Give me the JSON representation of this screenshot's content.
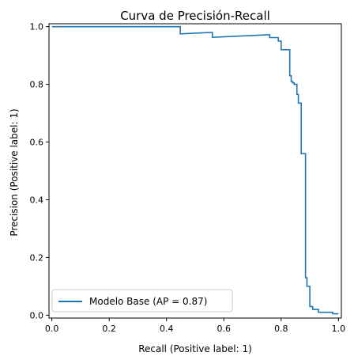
{
  "chart_data": {
    "type": "line",
    "title": "Curva de Precisión-Recall",
    "xlabel": "Recall (Positive label: 1)",
    "ylabel": "Precision (Positive label: 1)",
    "xlim": [
      -0.01,
      1.01
    ],
    "ylim": [
      -0.01,
      1.01
    ],
    "xticks": [
      "0.0",
      "0.2",
      "0.4",
      "0.6",
      "0.8",
      "1.0"
    ],
    "yticks": [
      "0.0",
      "0.2",
      "0.4",
      "0.6",
      "0.8",
      "1.0"
    ],
    "grid": false,
    "legend_position": "lower left",
    "series": [
      {
        "name": "Modelo Base (AP = 0.87)",
        "color": "#1f77b4",
        "drawstyle": "steps-post",
        "x": [
          0.0,
          0.448,
          0.448,
          0.56,
          0.56,
          0.76,
          0.76,
          0.79,
          0.79,
          0.8,
          0.8,
          0.81,
          0.81,
          0.83,
          0.83,
          0.835,
          0.835,
          0.84,
          0.84,
          0.845,
          0.845,
          0.855,
          0.855,
          0.86,
          0.86,
          0.87,
          0.87,
          0.88,
          0.88,
          0.885,
          0.885,
          0.89,
          0.89,
          0.9,
          0.9,
          0.91,
          0.91,
          0.93,
          0.93,
          0.98,
          0.98,
          1.0
        ],
        "y": [
          1.0,
          1.0,
          0.975,
          0.98,
          0.963,
          0.972,
          0.962,
          0.962,
          0.95,
          0.95,
          0.92,
          0.92,
          0.92,
          0.92,
          0.83,
          0.83,
          0.81,
          0.81,
          0.805,
          0.805,
          0.8,
          0.8,
          0.765,
          0.765,
          0.735,
          0.735,
          0.56,
          0.56,
          0.56,
          0.56,
          0.13,
          0.13,
          0.1,
          0.1,
          0.03,
          0.03,
          0.02,
          0.02,
          0.01,
          0.01,
          0.005,
          0.005
        ]
      }
    ]
  }
}
